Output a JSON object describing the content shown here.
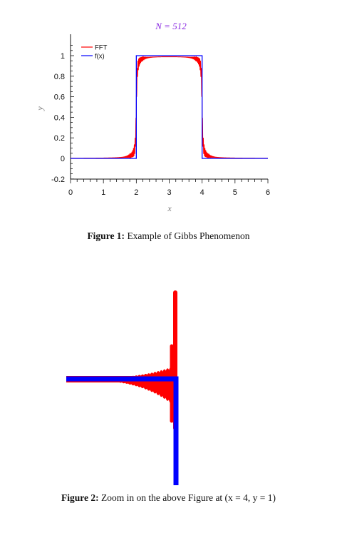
{
  "figure1": {
    "caption_label": "Figure 1:",
    "caption_text": "Example of Gibbs Phenomenon",
    "chart_data": {
      "type": "line",
      "title": "N = 512",
      "xlabel": "x",
      "ylabel": "y",
      "xlim": [
        0,
        6
      ],
      "ylim": [
        -0.2,
        1.1
      ],
      "x_ticks": [
        "0",
        "1",
        "2",
        "3",
        "4",
        "5",
        "6"
      ],
      "y_ticks": [
        "-0.2",
        "0",
        "0.2",
        "0.4",
        "0.6",
        "0.8",
        "1"
      ],
      "legend_position": "top-left",
      "series": [
        {
          "name": "FFT",
          "color": "#ff0000",
          "overshoot_peak": 1.09,
          "undershoot_min": -0.13
        },
        {
          "name": "f(x)",
          "color": "#0000ff",
          "x": [
            0,
            2,
            2,
            4,
            4,
            6
          ],
          "values": [
            0,
            0,
            1,
            1,
            0,
            0
          ]
        }
      ]
    }
  },
  "figure2": {
    "caption_label": "Figure 2:",
    "caption_text": "Zoom in on the above Figure at (x = 4, y = 1)",
    "chart_data": {
      "type": "line",
      "zoom_center": {
        "x": 4,
        "y": 1
      },
      "series": [
        {
          "name": "FFT",
          "color": "#ff0000"
        },
        {
          "name": "f(x)",
          "color": "#0000ff"
        }
      ]
    }
  }
}
